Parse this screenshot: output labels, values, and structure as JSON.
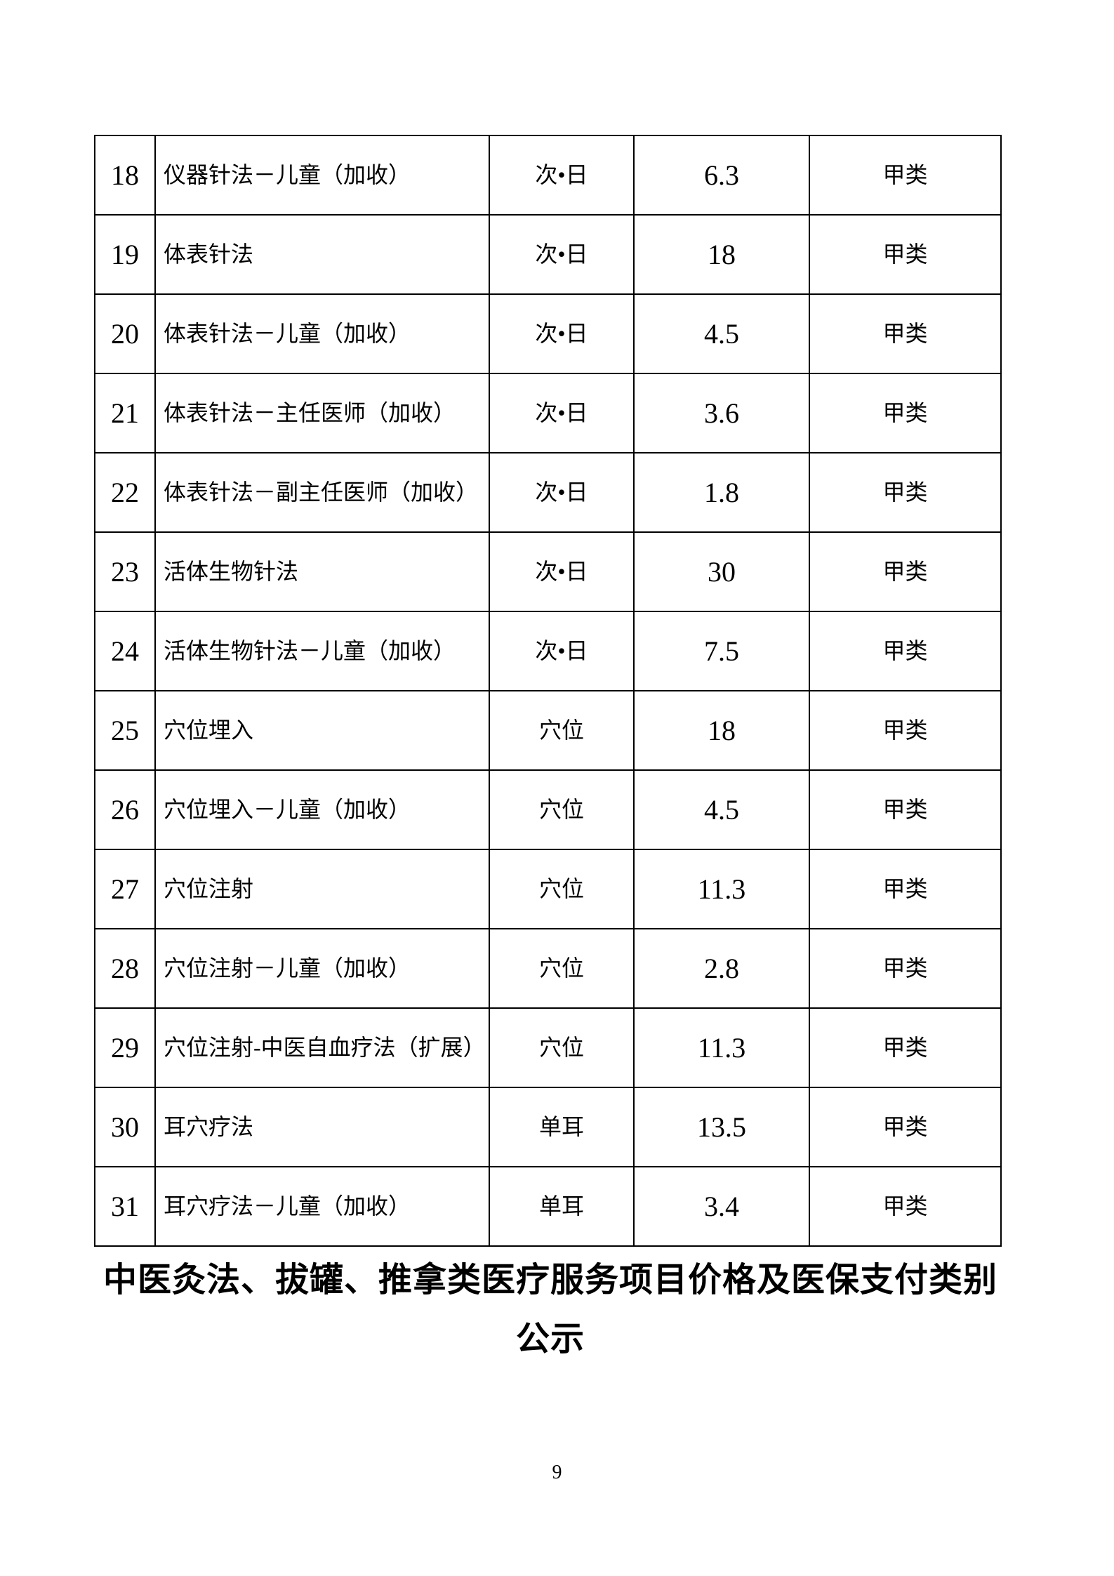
{
  "colors": {
    "text": "#000000",
    "background": "#ffffff",
    "border": "#000000"
  },
  "title": {
    "line1": "中医灸法、拔罐、推拿类医疗服务项目价格及医保支付类别",
    "line2": "公示"
  },
  "page": {
    "number": "9"
  },
  "table": {
    "rows": [
      {
        "no": "18",
        "name": "仪器针法－儿童（加收）",
        "unit": "次•日",
        "price": "6.3",
        "category": "甲类"
      },
      {
        "no": "19",
        "name": "体表针法",
        "unit": "次•日",
        "price": "18",
        "category": "甲类"
      },
      {
        "no": "20",
        "name": "体表针法－儿童（加收）",
        "unit": "次•日",
        "price": "4.5",
        "category": "甲类"
      },
      {
        "no": "21",
        "name": "体表针法－主任医师（加收）",
        "unit": "次•日",
        "price": "3.6",
        "category": "甲类"
      },
      {
        "no": "22",
        "name": "体表针法－副主任医师（加收）",
        "unit": "次•日",
        "price": "1.8",
        "category": "甲类"
      },
      {
        "no": "23",
        "name": "活体生物针法",
        "unit": "次•日",
        "price": "30",
        "category": "甲类"
      },
      {
        "no": "24",
        "name": "活体生物针法－儿童（加收）",
        "unit": "次•日",
        "price": "7.5",
        "category": "甲类"
      },
      {
        "no": "25",
        "name": "穴位埋入",
        "unit": "穴位",
        "price": "18",
        "category": "甲类"
      },
      {
        "no": "26",
        "name": "穴位埋入－儿童（加收）",
        "unit": "穴位",
        "price": "4.5",
        "category": "甲类"
      },
      {
        "no": "27",
        "name": "穴位注射",
        "unit": "穴位",
        "price": "11.3",
        "category": "甲类"
      },
      {
        "no": "28",
        "name": "穴位注射－儿童（加收）",
        "unit": "穴位",
        "price": "2.8",
        "category": "甲类"
      },
      {
        "no": "29",
        "name": "穴位注射-中医自血疗法（扩展）",
        "unit": "穴位",
        "price": "11.3",
        "category": "甲类"
      },
      {
        "no": "30",
        "name": "耳穴疗法",
        "unit": "单耳",
        "price": "13.5",
        "category": "甲类"
      },
      {
        "no": "31",
        "name": "耳穴疗法－儿童（加收）",
        "unit": "单耳",
        "price": "3.4",
        "category": "甲类"
      }
    ]
  }
}
